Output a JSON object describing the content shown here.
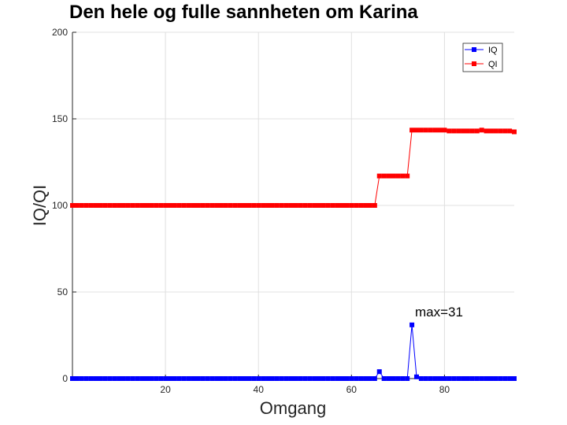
{
  "chart_data": {
    "type": "line",
    "title": "Den hele og fulle sannheten om Karina",
    "xlabel": "Omgang",
    "ylabel": "IQ/QI",
    "xlim": [
      0,
      95
    ],
    "ylim": [
      0,
      200
    ],
    "xticks": [
      20,
      40,
      60,
      80
    ],
    "yticks": [
      0,
      50,
      100,
      150,
      200
    ],
    "grid": true,
    "legend_position": "top-right",
    "annotation": {
      "text": "max=31",
      "x": 73,
      "y": 31
    },
    "series": [
      {
        "name": "IQ",
        "color": "#0000ff",
        "marker": "square",
        "x": [
          0,
          1,
          2,
          3,
          4,
          5,
          6,
          7,
          8,
          9,
          10,
          11,
          12,
          13,
          14,
          15,
          16,
          17,
          18,
          19,
          20,
          21,
          22,
          23,
          24,
          25,
          26,
          27,
          28,
          29,
          30,
          31,
          32,
          33,
          34,
          35,
          36,
          37,
          38,
          39,
          40,
          41,
          42,
          43,
          44,
          45,
          46,
          47,
          48,
          49,
          50,
          51,
          52,
          53,
          54,
          55,
          56,
          57,
          58,
          59,
          60,
          61,
          62,
          63,
          64,
          65,
          66,
          67,
          68,
          69,
          70,
          71,
          72,
          73,
          74,
          75,
          76,
          77,
          78,
          79,
          80,
          81,
          82,
          83,
          84,
          85,
          86,
          87,
          88,
          89,
          90,
          91,
          92,
          93,
          94,
          95
        ],
        "values": [
          0,
          0,
          0,
          0,
          0,
          0,
          0,
          0,
          0,
          0,
          0,
          0,
          0,
          0,
          0,
          0,
          0,
          0,
          0,
          0,
          0,
          0,
          0,
          0,
          0,
          0,
          0,
          0,
          0,
          0,
          0,
          0,
          0,
          0,
          0,
          0,
          0,
          0,
          0,
          0,
          0,
          0,
          0,
          0,
          0,
          0,
          0,
          0,
          0,
          0,
          0,
          0,
          0,
          0,
          0,
          0,
          0,
          0,
          0,
          0,
          0,
          0,
          0,
          0,
          0,
          0,
          4,
          0,
          0,
          0,
          0,
          0,
          0,
          31,
          1,
          0,
          0,
          0,
          0,
          0,
          0,
          0,
          0,
          0,
          0,
          0,
          0,
          0,
          0,
          0,
          0,
          0,
          0,
          0,
          0,
          0
        ]
      },
      {
        "name": "QI",
        "color": "#ff0000",
        "marker": "square",
        "x": [
          0,
          1,
          2,
          3,
          4,
          5,
          6,
          7,
          8,
          9,
          10,
          11,
          12,
          13,
          14,
          15,
          16,
          17,
          18,
          19,
          20,
          21,
          22,
          23,
          24,
          25,
          26,
          27,
          28,
          29,
          30,
          31,
          32,
          33,
          34,
          35,
          36,
          37,
          38,
          39,
          40,
          41,
          42,
          43,
          44,
          45,
          46,
          47,
          48,
          49,
          50,
          51,
          52,
          53,
          54,
          55,
          56,
          57,
          58,
          59,
          60,
          61,
          62,
          63,
          64,
          65,
          66,
          67,
          68,
          69,
          70,
          71,
          72,
          73,
          74,
          75,
          76,
          77,
          78,
          79,
          80,
          81,
          82,
          83,
          84,
          85,
          86,
          87,
          88,
          89,
          90,
          91,
          92,
          93,
          94,
          95
        ],
        "values": [
          100,
          100,
          100,
          100,
          100,
          100,
          100,
          100,
          100,
          100,
          100,
          100,
          100,
          100,
          100,
          100,
          100,
          100,
          100,
          100,
          100,
          100,
          100,
          100,
          100,
          100,
          100,
          100,
          100,
          100,
          100,
          100,
          100,
          100,
          100,
          100,
          100,
          100,
          100,
          100,
          100,
          100,
          100,
          100,
          100,
          100,
          100,
          100,
          100,
          100,
          100,
          100,
          100,
          100,
          100,
          100,
          100,
          100,
          100,
          100,
          100,
          100,
          100,
          100,
          100,
          100,
          117,
          117,
          117,
          117,
          117,
          117,
          117,
          143.5,
          143.5,
          143.5,
          143.5,
          143.5,
          143.5,
          143.5,
          143.5,
          143,
          143,
          143,
          143,
          143,
          143,
          143,
          143.5,
          143,
          143,
          143,
          143,
          143,
          143,
          142.5
        ]
      }
    ]
  }
}
